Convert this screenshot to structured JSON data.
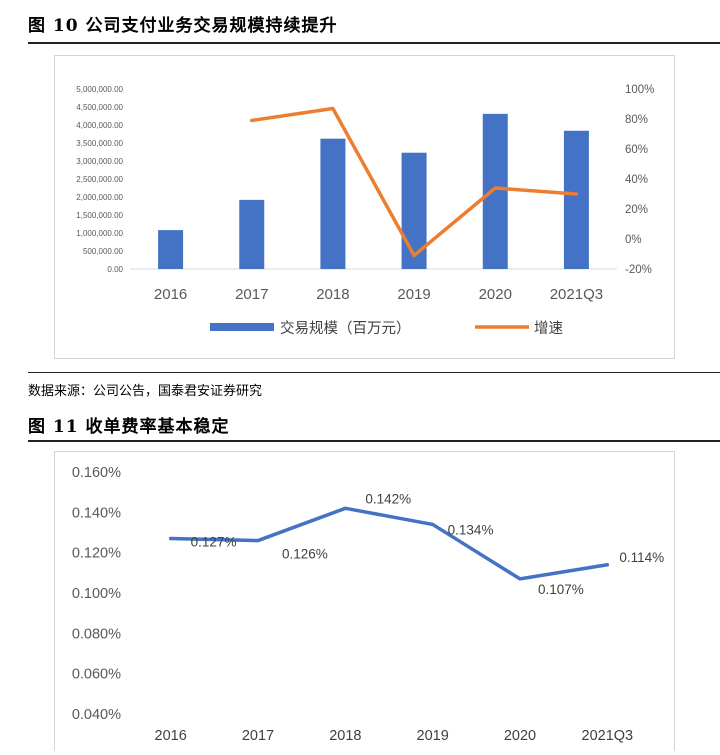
{
  "figure10": {
    "title": "图 10 公司支付业务交易规模持续提升",
    "source": "数据来源：公司公告，国泰君安证券研究"
  },
  "figure11": {
    "title": "图 11 收单费率基本稳定"
  },
  "colors": {
    "bar": "#4472C4",
    "growth": "#ED7D31",
    "rate": "#4472C4"
  },
  "chart_data": [
    {
      "type": "bar",
      "categories": [
        "2016",
        "2017",
        "2018",
        "2019",
        "2020",
        "2021Q3"
      ],
      "series": [
        {
          "name": "交易规模（百万元）",
          "type": "bar",
          "axis": "left",
          "values": [
            1080000,
            1920000,
            3620000,
            3230000,
            4310000,
            3840000
          ]
        },
        {
          "name": "增速",
          "type": "line",
          "axis": "right",
          "values": [
            null,
            79,
            87,
            -11,
            34,
            30
          ]
        }
      ],
      "y_left": {
        "min": 0,
        "max": 5000000,
        "ticks": [
          "0.00",
          "500,000.00",
          "1,000,000.00",
          "1,500,000.00",
          "2,000,000.00",
          "2,500,000.00",
          "3,000,000.00",
          "3,500,000.00",
          "4,000,000.00",
          "4,500,000.00",
          "5,000,000.00"
        ]
      },
      "y_right": {
        "min": -20,
        "max": 100,
        "ticks": [
          "-20%",
          "0%",
          "20%",
          "40%",
          "60%",
          "80%",
          "100%"
        ]
      },
      "legend_position": "bottom"
    },
    {
      "type": "line",
      "categories": [
        "2016",
        "2017",
        "2018",
        "2019",
        "2020",
        "2021Q3"
      ],
      "series": [
        {
          "values": [
            0.127,
            0.126,
            0.142,
            0.134,
            0.107,
            0.114
          ],
          "labels": [
            "0.127%",
            "0.126%",
            "0.142%",
            "0.134%",
            "0.107%",
            "0.114%"
          ]
        }
      ],
      "y": {
        "min": 0.04,
        "max": 0.16,
        "ticks": [
          "0.040%",
          "0.060%",
          "0.080%",
          "0.100%",
          "0.120%",
          "0.140%",
          "0.160%"
        ]
      }
    }
  ]
}
